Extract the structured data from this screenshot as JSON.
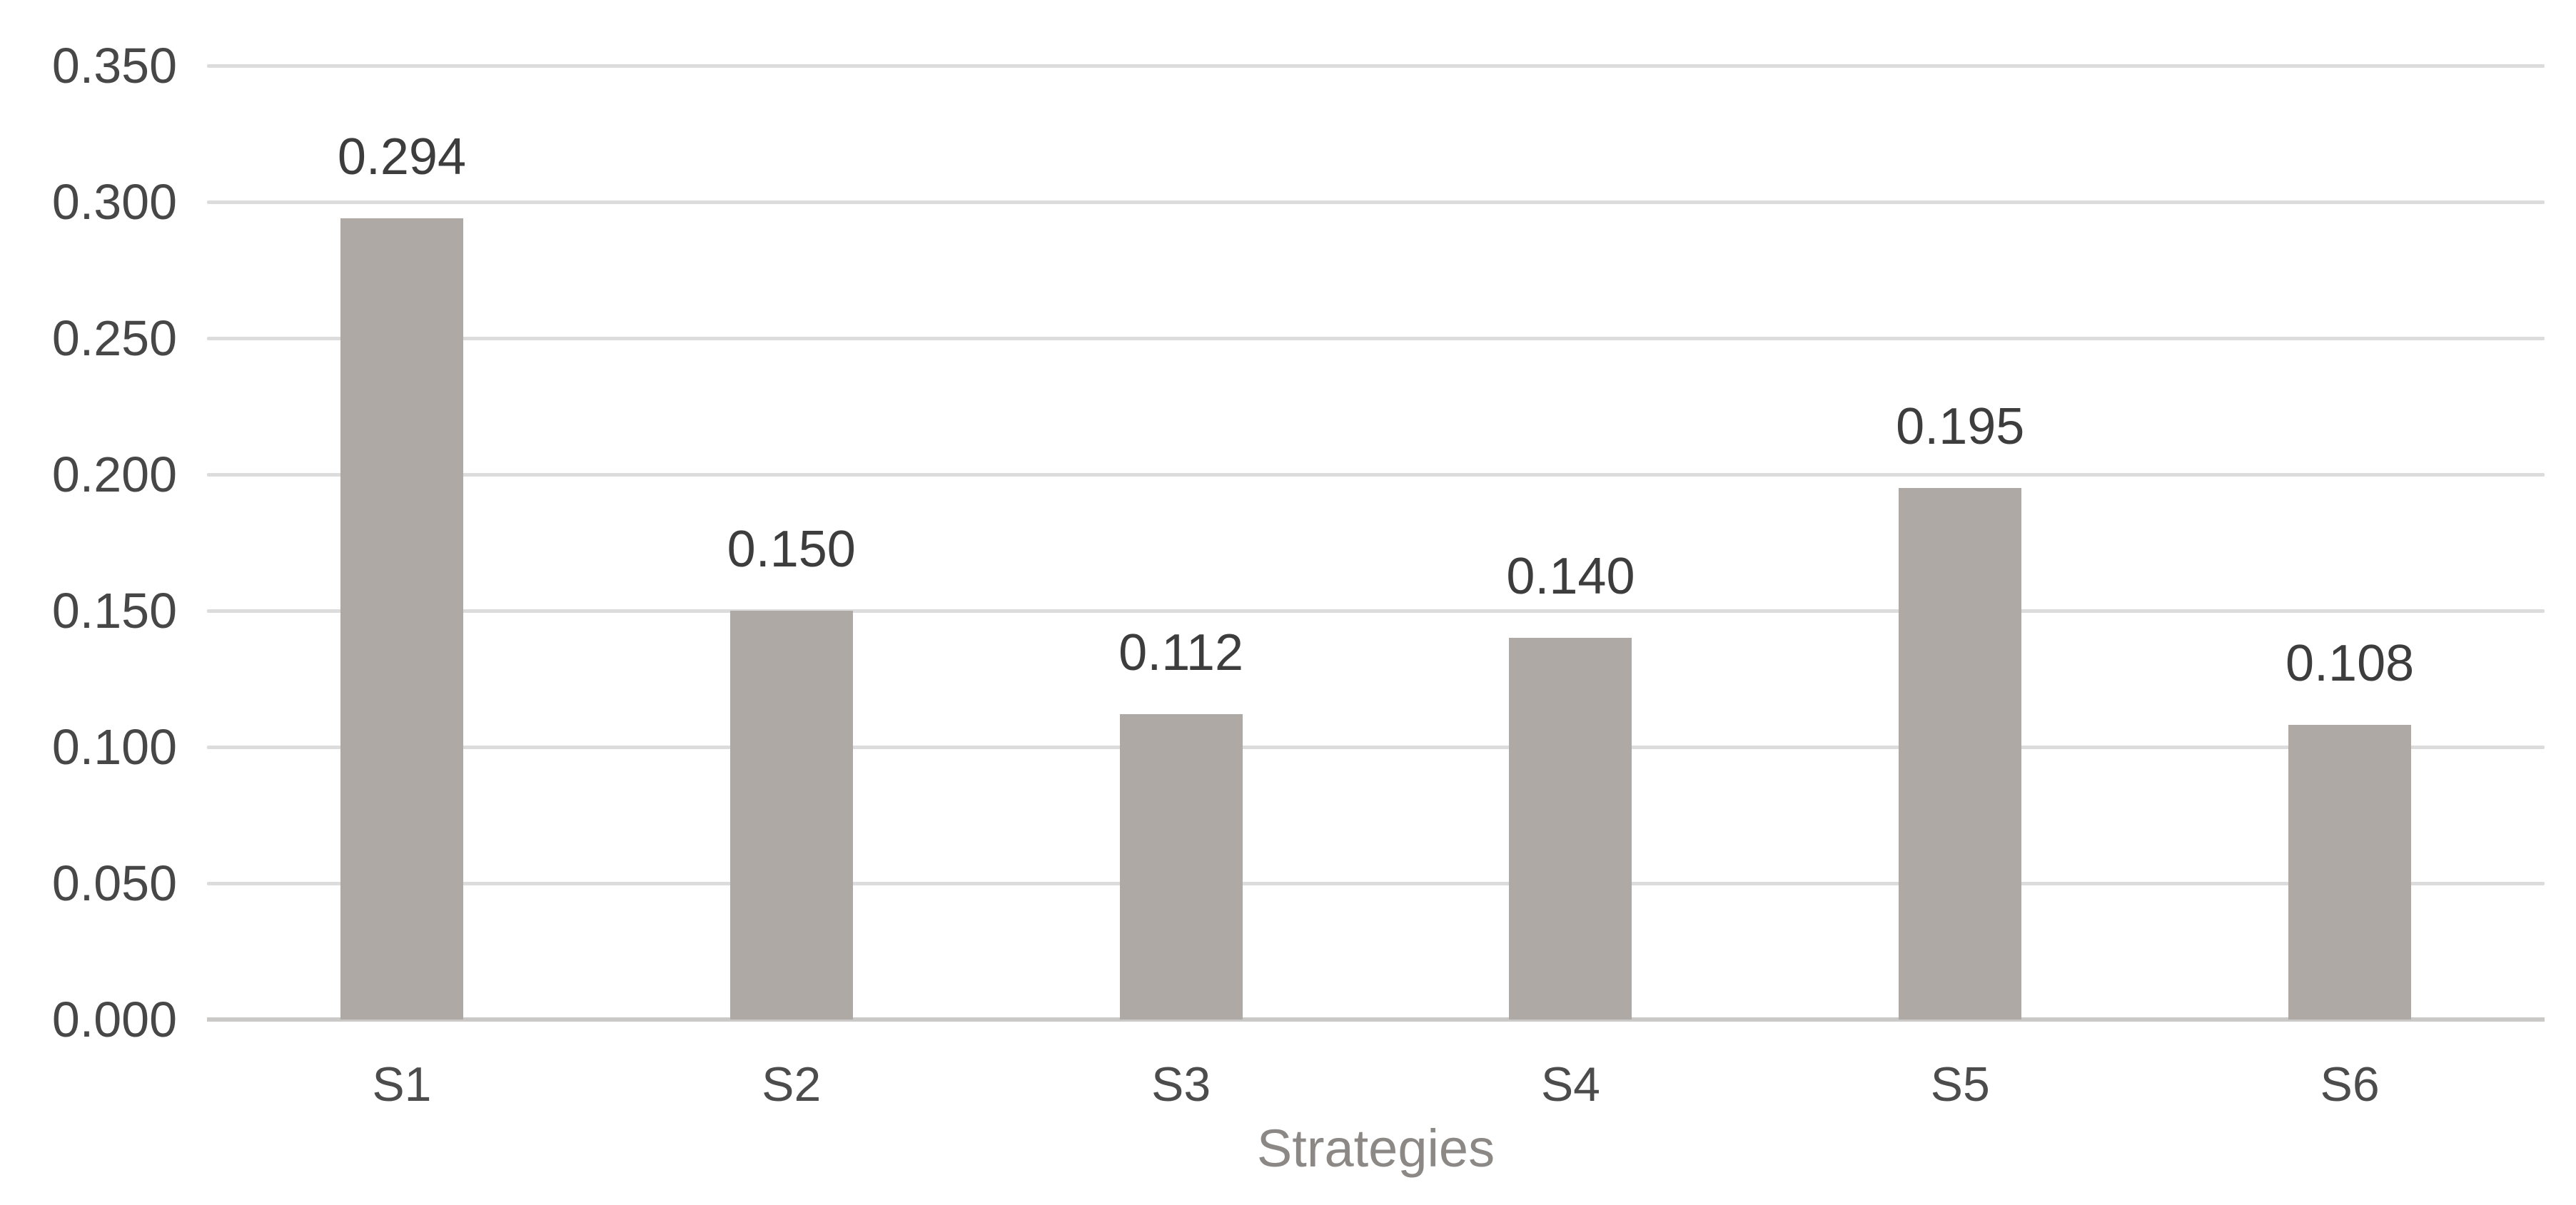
{
  "chart_data": {
    "type": "bar",
    "title": "",
    "xlabel": "Strategies",
    "ylabel": "",
    "categories": [
      "S1",
      "S2",
      "S3",
      "S4",
      "S5",
      "S6"
    ],
    "values": [
      0.294,
      0.15,
      0.112,
      0.14,
      0.195,
      0.108
    ],
    "value_labels": [
      "0.294",
      "0.150",
      "0.112",
      "0.140",
      "0.195",
      "0.108"
    ],
    "ylim": [
      0,
      0.35
    ],
    "yticks": [
      {
        "value": 0.35,
        "label": "0.350"
      },
      {
        "value": 0.3,
        "label": "0.300"
      },
      {
        "value": 0.25,
        "label": "0.250"
      },
      {
        "value": 0.2,
        "label": "0.200"
      },
      {
        "value": 0.15,
        "label": "0.150"
      },
      {
        "value": 0.1,
        "label": "0.100"
      },
      {
        "value": 0.05,
        "label": "0.050"
      },
      {
        "value": 0.0,
        "label": "0.000"
      }
    ],
    "grid": true,
    "legend": false,
    "colors": {
      "bar": "#afa9a6",
      "gridline": "#dddcdc",
      "axis_line": "#cbc9c8",
      "ytick_text": "#474747",
      "data_label_text": "#3d3d3d",
      "category_text": "#4c4c4c",
      "axis_title_text": "#8b8885",
      "background": "#ffffff"
    }
  }
}
